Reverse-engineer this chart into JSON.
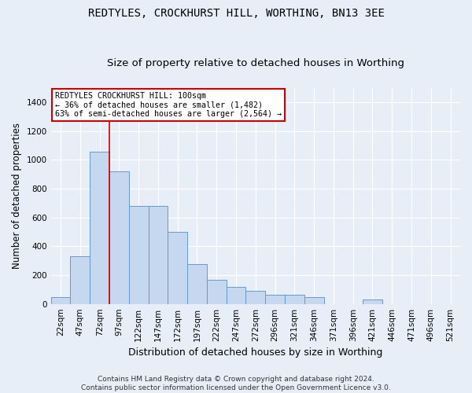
{
  "title": "REDTYLES, CROCKHURST HILL, WORTHING, BN13 3EE",
  "subtitle": "Size of property relative to detached houses in Worthing",
  "xlabel": "Distribution of detached houses by size in Worthing",
  "ylabel": "Number of detached properties",
  "categories": [
    "22sqm",
    "47sqm",
    "72sqm",
    "97sqm",
    "122sqm",
    "147sqm",
    "172sqm",
    "197sqm",
    "222sqm",
    "247sqm",
    "272sqm",
    "296sqm",
    "321sqm",
    "346sqm",
    "371sqm",
    "396sqm",
    "421sqm",
    "446sqm",
    "471sqm",
    "496sqm",
    "521sqm"
  ],
  "values": [
    50,
    330,
    1055,
    920,
    680,
    680,
    500,
    275,
    170,
    120,
    90,
    65,
    65,
    50,
    0,
    0,
    30,
    0,
    0,
    0,
    0
  ],
  "bar_color": "#c5d8f0",
  "bar_edge_color": "#6699cc",
  "red_line_index": 2,
  "annotation_title": "REDTYLES CROCKHURST HILL: 100sqm",
  "annotation_line1": "← 36% of detached houses are smaller (1,482)",
  "annotation_line2": "63% of semi-detached houses are larger (2,564) →",
  "annotation_box_color": "#ffffff",
  "annotation_box_edge": "#cc0000",
  "ylim": [
    0,
    1500
  ],
  "yticks": [
    0,
    200,
    400,
    600,
    800,
    1000,
    1200,
    1400
  ],
  "footer1": "Contains HM Land Registry data © Crown copyright and database right 2024.",
  "footer2": "Contains public sector information licensed under the Open Government Licence v3.0.",
  "background_color": "#e8eef8",
  "grid_color": "#ffffff",
  "title_fontsize": 10,
  "subtitle_fontsize": 9.5,
  "axis_label_fontsize": 8.5,
  "tick_fontsize": 7.5,
  "footer_fontsize": 6.5
}
